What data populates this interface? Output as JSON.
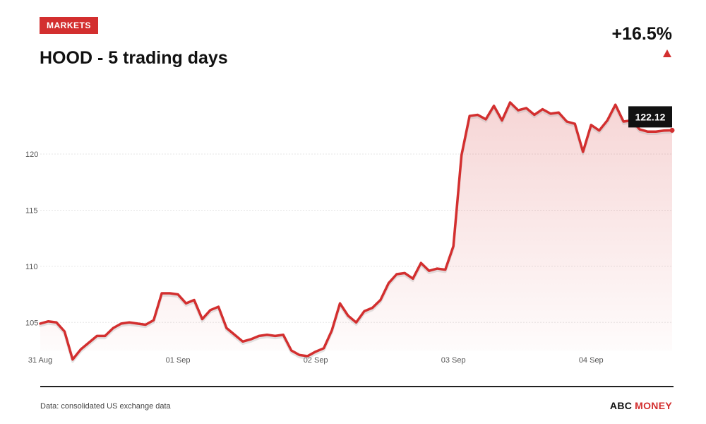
{
  "header": {
    "badge": "MARKETS",
    "title": "HOOD - 5 trading days",
    "change": "+16.5%"
  },
  "footer": {
    "source": "Data: consolidated US exchange data",
    "brand_part1": "ABC",
    "brand_part2": "MONEY"
  },
  "colors": {
    "accent": "#d32f2f",
    "text": "#111111"
  },
  "icons": {
    "change_direction": "triangle-up-icon"
  },
  "chart_data": {
    "type": "area",
    "title": "HOOD - 5 trading days",
    "xlabel": "",
    "ylabel": "",
    "ylim": [
      102.5,
      124.6
    ],
    "yticks": [
      105,
      110,
      115,
      120
    ],
    "xticks": [
      {
        "label": "31 Aug",
        "index": 0
      },
      {
        "label": "01 Sep",
        "index": 17
      },
      {
        "label": "02 Sep",
        "index": 34
      },
      {
        "label": "03 Sep",
        "index": 51
      },
      {
        "label": "04 Sep",
        "index": 68
      }
    ],
    "grid": true,
    "last_value_label": "122.12",
    "series": [
      {
        "values": [
          104.9,
          105.1,
          105.0,
          104.2,
          101.7,
          102.6,
          103.2,
          103.8,
          103.8,
          104.5,
          104.9,
          105.0,
          104.9,
          104.8,
          105.2,
          107.6,
          107.6,
          107.5,
          106.7,
          107.0,
          105.3,
          106.1,
          106.4,
          104.5,
          103.9,
          103.3,
          103.5,
          103.8,
          103.9,
          103.8,
          103.9,
          102.5,
          102.1,
          102.0,
          102.4,
          102.7,
          104.3,
          106.7,
          105.6,
          105.0,
          106.0,
          106.3,
          107.0,
          108.5,
          109.3,
          109.4,
          108.9,
          110.3,
          109.6,
          109.8,
          109.7,
          111.8,
          119.9,
          123.4,
          123.5,
          123.1,
          124.3,
          123.0,
          124.6,
          123.9,
          124.1,
          123.5,
          124.0,
          123.6,
          123.7,
          122.9,
          122.7,
          120.2,
          122.6,
          122.1,
          123.0,
          124.4,
          122.9,
          123.0,
          122.2,
          122.0,
          122.0,
          122.1,
          122.12
        ]
      }
    ]
  }
}
